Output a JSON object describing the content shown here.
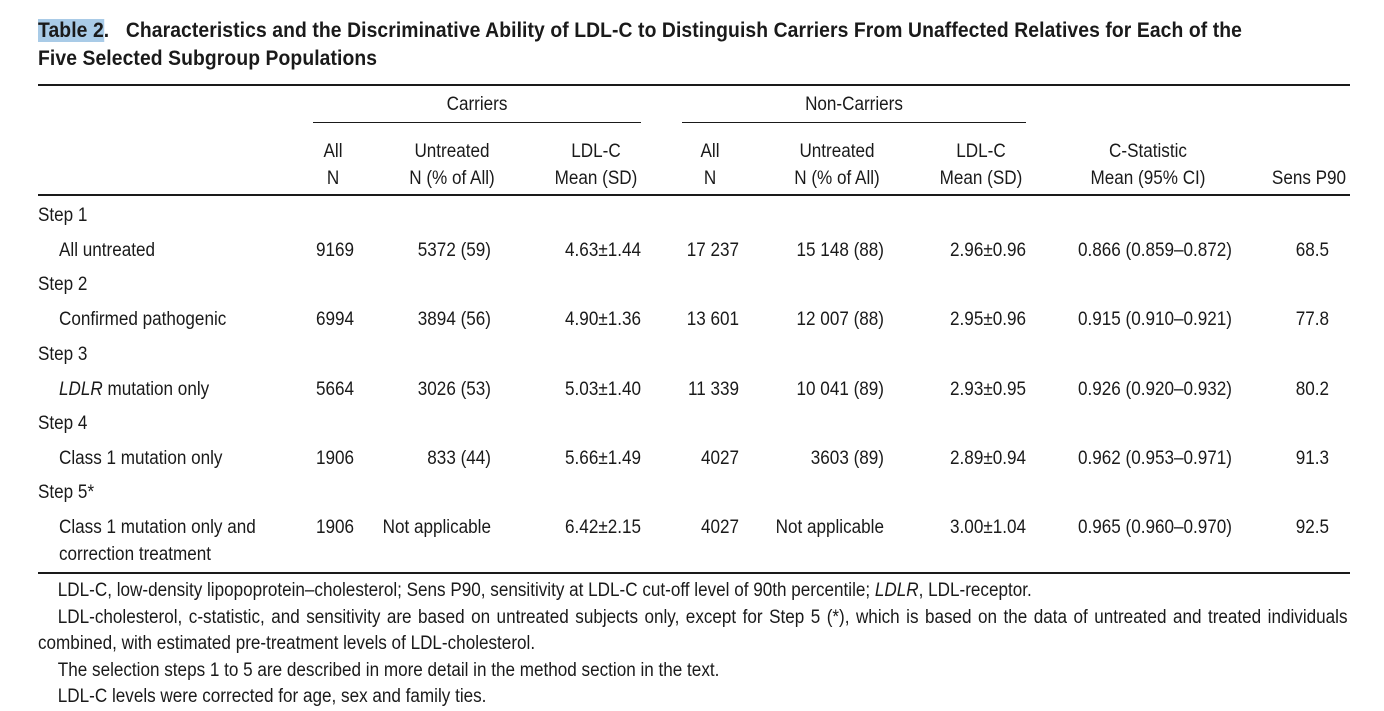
{
  "caption": {
    "label": "Table 2",
    "label_dot": ".",
    "title_line1": "Characteristics and the Discriminative Ability of LDL-C to Distinguish Carriers From Unaffected Relatives for Each of the",
    "title_line2": "Five Selected Subgroup Populations"
  },
  "header": {
    "group_carriers": "Carriers",
    "group_noncarriers": "Non-Carriers",
    "cols": [
      {
        "line1": "All",
        "line2": "N"
      },
      {
        "line1": "Untreated",
        "line2": "N (% of All)"
      },
      {
        "line1": "LDL-C",
        "line2": "Mean (SD)"
      },
      {
        "line1": "All",
        "line2": "N"
      },
      {
        "line1": "Untreated",
        "line2": "N (% of All)"
      },
      {
        "line1": "LDL-C",
        "line2": "Mean (SD)"
      },
      {
        "line1": "C-Statistic",
        "line2": "Mean (95% CI)"
      },
      {
        "line1": "",
        "line2": "Sens P90"
      }
    ]
  },
  "rows": [
    {
      "step": "Step 1",
      "label": "All untreated",
      "label_em": "",
      "label2": "",
      "c_all": "9169",
      "c_untreated": "5372 (59)",
      "c_ldl": "4.63±1.44",
      "n_all": "17 237",
      "n_untreated": "15 148 (88)",
      "n_ldl": "2.96±0.96",
      "cstat": "0.866 (0.859–0.872)",
      "sens": "68.5"
    },
    {
      "step": "Step 2",
      "label": "Confirmed pathogenic",
      "label_em": "",
      "label2": "",
      "c_all": "6994",
      "c_untreated": "3894 (56)",
      "c_ldl": "4.90±1.36",
      "n_all": "13 601",
      "n_untreated": "12 007 (88)",
      "n_ldl": "2.95±0.96",
      "cstat": "0.915 (0.910–0.921)",
      "sens": "77.8"
    },
    {
      "step": "Step 3",
      "label": " mutation only",
      "label_em": "LDLR",
      "label2": "",
      "c_all": "5664",
      "c_untreated": "3026 (53)",
      "c_ldl": "5.03±1.40",
      "n_all": "11 339",
      "n_untreated": "10 041 (89)",
      "n_ldl": "2.93±0.95",
      "cstat": "0.926 (0.920–0.932)",
      "sens": "80.2"
    },
    {
      "step": "Step 4",
      "label": "Class 1 mutation only",
      "label_em": "",
      "label2": "",
      "c_all": "1906",
      "c_untreated": "833 (44)",
      "c_ldl": "5.66±1.49",
      "n_all": "4027",
      "n_untreated": "3603 (89)",
      "n_ldl": "2.89±0.94",
      "cstat": "0.962 (0.953–0.971)",
      "sens": "91.3"
    },
    {
      "step": "Step 5*",
      "label": "Class 1 mutation only and",
      "label_em": "",
      "label2": "correction treatment",
      "c_all": "1906",
      "c_untreated": "Not applicable",
      "c_ldl": "6.42±2.15",
      "n_all": "4027",
      "n_untreated": "Not applicable",
      "n_ldl": "3.00±1.04",
      "cstat": "0.965 (0.960–0.970)",
      "sens": "92.5"
    }
  ],
  "notes": {
    "n1_pre": "LDL-C, low-density lipopoprotein–cholesterol; Sens P90, sensitivity at LDL-C cut-off level of 90th percentile; ",
    "n1_em": "LDLR",
    "n1_post": ", LDL-receptor.",
    "n2": "LDL-cholesterol, c-statistic, and sensitivity are based on untreated subjects only, except for Step 5 (*), which is based on the data of untreated and treated individuals combined, with estimated pre-treatment levels of LDL-cholesterol.",
    "n3": "The selection steps 1 to 5 are described in more detail in the method section in the text.",
    "n4": "LDL-C levels were corrected for age, sex and family ties."
  }
}
